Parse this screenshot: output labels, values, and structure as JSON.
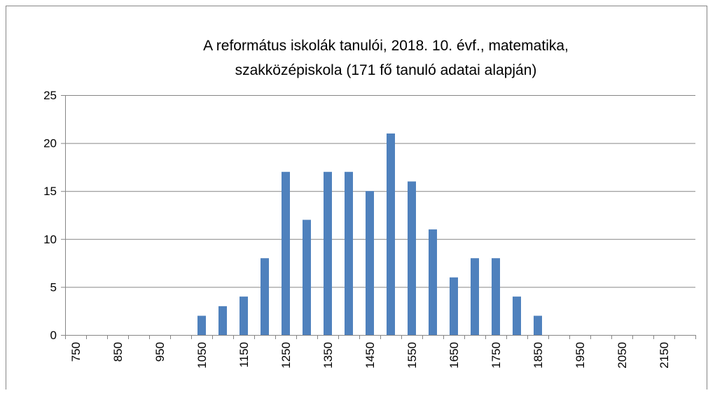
{
  "chart_data": {
    "type": "bar",
    "title": [
      "A református iskolák tanulói, 2018. 10. évf., matematika,",
      "szakközépiskola (171 fő tanuló adatai alapján)"
    ],
    "categories": [
      "750",
      null,
      "850",
      null,
      "950",
      null,
      "1050",
      null,
      "1150",
      null,
      "1250",
      null,
      "1350",
      null,
      "1450",
      null,
      "1550",
      null,
      "1650",
      null,
      "1750",
      null,
      "1850",
      null,
      "1950",
      null,
      "2050",
      null,
      "2150",
      null
    ],
    "values": [
      0,
      0,
      0,
      0,
      0,
      0,
      2,
      3,
      4,
      8,
      17,
      12,
      17,
      17,
      15,
      21,
      16,
      11,
      6,
      8,
      8,
      4,
      2,
      0,
      0,
      0,
      0,
      0,
      0,
      0
    ],
    "color": "#4f81bd",
    "ylim": [
      0,
      25
    ],
    "yticks": [
      0,
      5,
      10,
      15,
      20,
      25
    ],
    "grid": true
  }
}
